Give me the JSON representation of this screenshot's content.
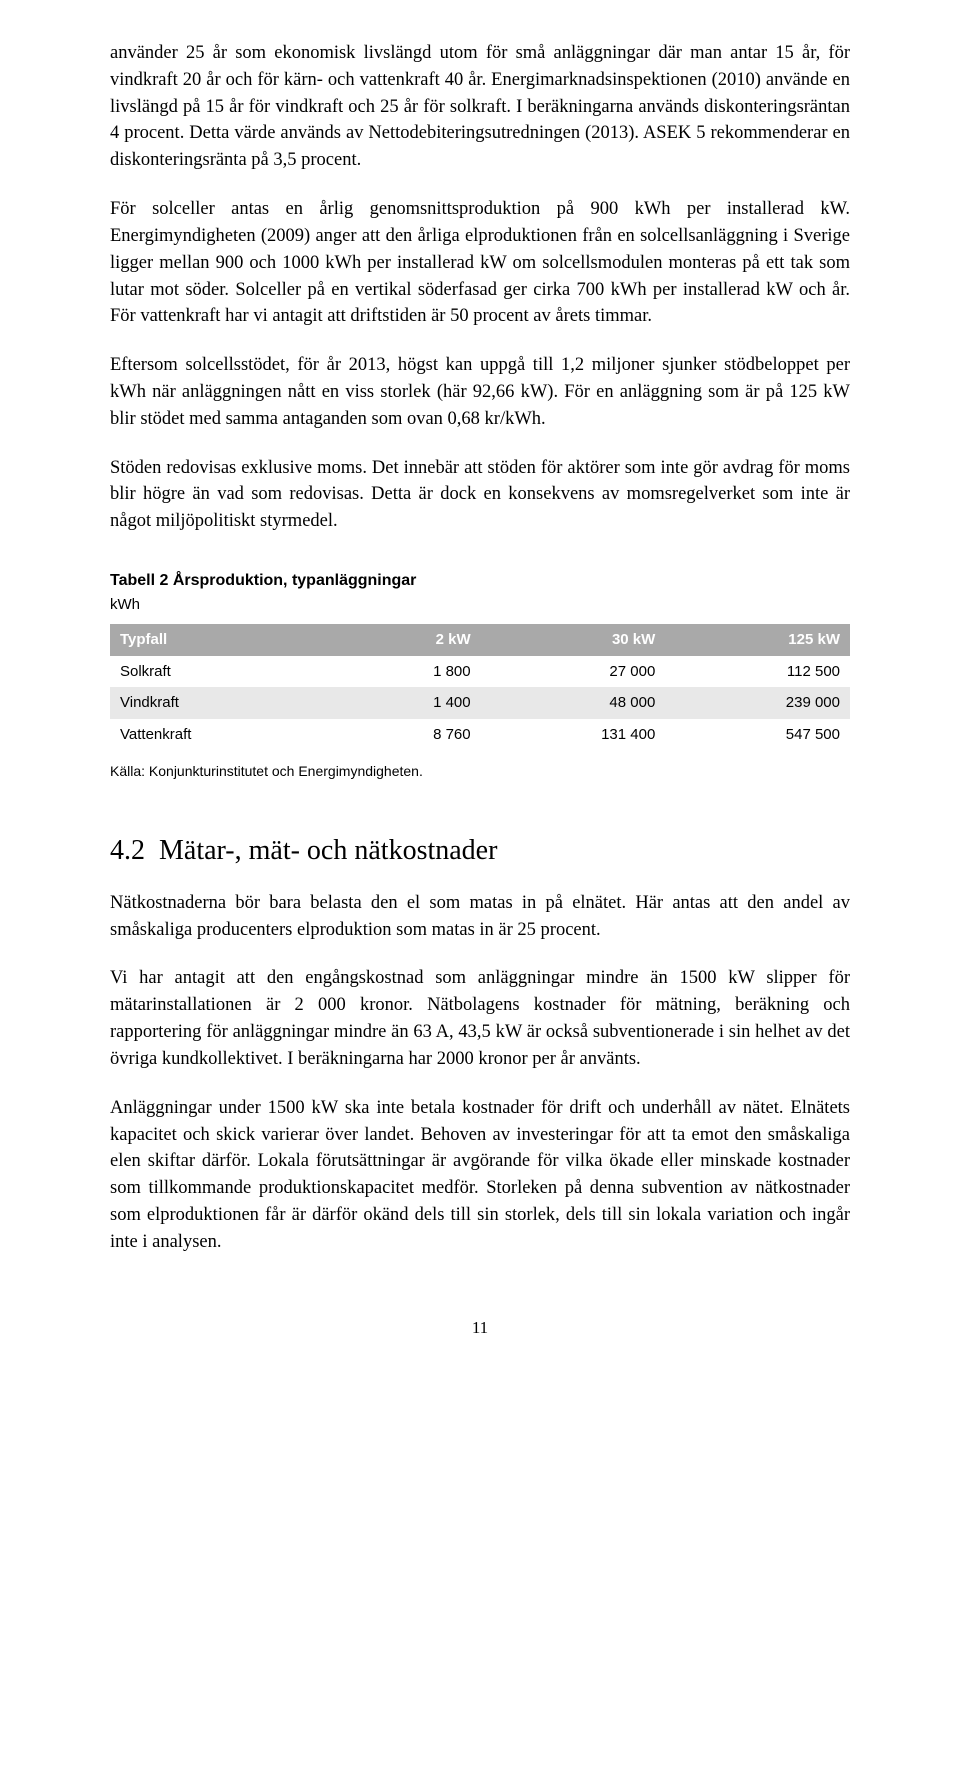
{
  "paragraphs": {
    "p1": "använder 25 år som ekonomisk livslängd utom för små anläggningar där man antar 15 år, för vindkraft 20 år och för kärn- och vattenkraft 40 år. Energimarknadsinspektionen (2010) använde en livslängd på 15 år för vindkraft och 25 år för solkraft. I beräkningarna används diskonteringsräntan 4 procent. Detta värde används av Nettodebiteringsutredningen (2013). ASEK 5 rekommenderar en diskonteringsränta på 3,5 procent.",
    "p2": "För solceller antas en årlig genomsnittsproduktion på 900 kWh per installerad kW. Energimyndigheten (2009) anger att den årliga elproduktionen från en solcellsanläggning i Sverige ligger mellan 900 och 1000 kWh per installerad kW om solcellsmodulen monteras på ett tak som lutar mot söder. Solceller på en vertikal söderfasad ger cirka 700 kWh per installerad kW och år. För vattenkraft har vi antagit att driftstiden är 50 procent av årets timmar.",
    "p3": "Eftersom solcellsstödet, för år 2013, högst kan uppgå till 1,2 miljoner sjunker stödbeloppet per kWh när anläggningen nått en viss storlek (här 92,66 kW). För en anläggning som är på 125 kW blir stödet med samma antaganden som ovan 0,68 kr/kWh.",
    "p4": "Stöden redovisas exklusive moms. Det innebär att stöden för aktörer som inte gör avdrag för moms blir högre än vad som redovisas. Detta är dock en konsekvens av momsregelverket som inte är något miljöpolitiskt styrmedel.",
    "p5": "Nätkostnaderna bör bara belasta den el som matas in på elnätet. Här antas att den andel av småskaliga producenters elproduktion som matas in är 25 procent.",
    "p6": "Vi har antagit att den engångskostnad som anläggningar mindre än 1500 kW slipper för mätarinstallationen är 2 000 kronor. Nätbolagens kostnader för mätning, beräkning och rapportering för anläggningar mindre än 63 A, 43,5 kW är också subventionerade i sin helhet av det övriga kundkollektivet. I beräkningarna har 2000 kronor per år använts.",
    "p7": "Anläggningar under 1500 kW ska inte betala kostnader för drift och underhåll av nätet. Elnätets kapacitet och skick varierar över landet. Behoven av investeringar för att ta emot den småskaliga elen skiftar därför. Lokala förutsättningar är avgörande för vilka ökade eller minskade kostnader som tillkommande produktionskapacitet medför. Storleken på denna subvention av nätkostnader som elproduktionen får är därför okänd dels till sin storlek, dels till sin lokala variation och ingår inte i analysen."
  },
  "table": {
    "title": "Tabell 2 Årsproduktion, typanläggningar",
    "unit": "kWh",
    "header_bg": "#a9a9a9",
    "header_color": "#ffffff",
    "alt_row_bg": "#e8e8e8",
    "columns": [
      "Typfall",
      "2 kW",
      "30 kW",
      "125 kW"
    ],
    "rows": [
      {
        "label": "Solkraft",
        "c1": "1 800",
        "c2": "27 000",
        "c3": "112 500",
        "alt": false
      },
      {
        "label": "Vindkraft",
        "c1": "1 400",
        "c2": "48 000",
        "c3": "239 000",
        "alt": true
      },
      {
        "label": "Vattenkraft",
        "c1": "8 760",
        "c2": "131 400",
        "c3": "547 500",
        "alt": false
      }
    ],
    "source": "Källa: Konjunkturinstitutet och Energimyndigheten."
  },
  "section": {
    "number": "4.2",
    "title": "Mätar-, mät- och nätkostnader"
  },
  "page_number": "11"
}
